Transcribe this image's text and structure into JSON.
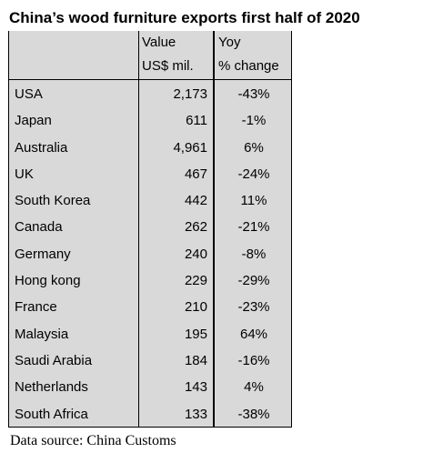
{
  "chart_data": {
    "type": "table",
    "title": "China’s wood furniture exports first half of 2020",
    "columns": [
      {
        "line1": "",
        "line2": ""
      },
      {
        "line1": "Value",
        "line2": "US$ mil."
      },
      {
        "line1": "Yoy",
        "line2": "% change"
      }
    ],
    "rows": [
      {
        "country": "USA",
        "value": "2,173",
        "yoy": "-43%"
      },
      {
        "country": "Japan",
        "value": "611",
        "yoy": "-1%"
      },
      {
        "country": "Australia",
        "value": "4,961",
        "yoy": "6%"
      },
      {
        "country": "UK",
        "value": "467",
        "yoy": "-24%"
      },
      {
        "country": "South Korea",
        "value": "442",
        "yoy": "11%"
      },
      {
        "country": "Canada",
        "value": "262",
        "yoy": "-21%"
      },
      {
        "country": "Germany",
        "value": "240",
        "yoy": "-8%"
      },
      {
        "country": "Hong kong",
        "value": "229",
        "yoy": "-29%"
      },
      {
        "country": "France",
        "value": "210",
        "yoy": "-23%"
      },
      {
        "country": "Malaysia",
        "value": "195",
        "yoy": "64%"
      },
      {
        "country": "Saudi Arabia",
        "value": "184",
        "yoy": "-16%"
      },
      {
        "country": "Netherlands",
        "value": "143",
        "yoy": "4%"
      },
      {
        "country": "South Africa",
        "value": "133",
        "yoy": "-38%"
      }
    ],
    "source": "Data source: China Customs"
  }
}
